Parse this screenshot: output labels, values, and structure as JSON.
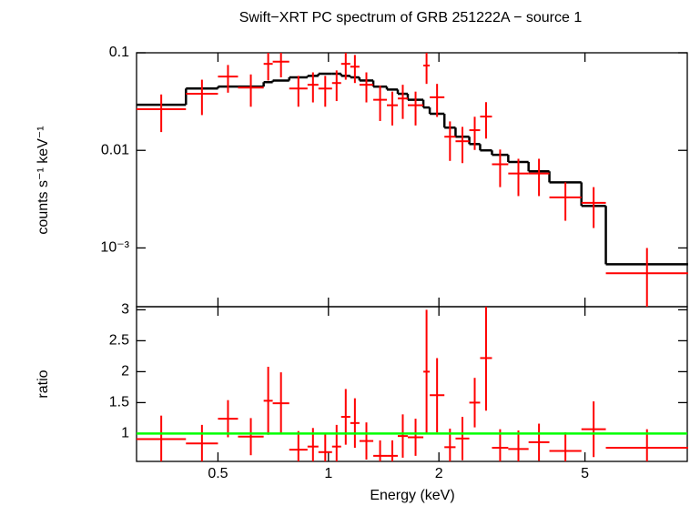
{
  "chart_data": [
    {
      "type": "spectrum",
      "title": "Swift−XRT PC spectrum of GRB 251222A − source 1",
      "ylabel": "counts s⁻¹ keV⁻¹",
      "xlog": true,
      "ylog": true,
      "xlim": [
        0.3,
        9.5
      ],
      "ylim": [
        0.00025,
        0.1
      ],
      "xticks": [
        0.5,
        1,
        2,
        5
      ],
      "yticks": [
        0.1,
        0.01,
        {
          "value": 0.001,
          "label": "10⁻³"
        }
      ],
      "bins": [
        0.3,
        0.409,
        0.5,
        0.567,
        0.666,
        0.705,
        0.782,
        0.877,
        0.939,
        1.023,
        1.083,
        1.147,
        1.215,
        1.325,
        1.443,
        1.545,
        1.645,
        1.814,
        1.888,
        2.07,
        2.22,
        2.42,
        2.59,
        2.79,
        3.09,
        3.51,
        4.0,
        4.89,
        5.7,
        9.55
      ],
      "data": {
        "color": "#ff0000",
        "values": [
          0.0264,
          0.038,
          0.057,
          0.044,
          0.077,
          0.081,
          0.043,
          0.047,
          0.043,
          0.049,
          0.077,
          0.072,
          0.047,
          0.033,
          0.029,
          0.034,
          0.029,
          0.074,
          0.035,
          0.0138,
          0.0124,
          0.0161,
          0.0222,
          0.0072,
          0.0058,
          0.0058,
          0.0033,
          0.0029,
          0.00055
        ],
        "errors": [
          0.011,
          0.015,
          0.018,
          0.016,
          0.025,
          0.025,
          0.015,
          0.016,
          0.015,
          0.017,
          0.024,
          0.023,
          0.016,
          0.013,
          0.011,
          0.013,
          0.011,
          0.026,
          0.013,
          0.006,
          0.005,
          0.006,
          0.009,
          0.003,
          0.0024,
          0.0024,
          0.0014,
          0.0013,
          0.00045
        ]
      },
      "model": {
        "color": "#000000",
        "values": [
          0.0293,
          0.043,
          0.045,
          0.045,
          0.05,
          0.052,
          0.056,
          0.058,
          0.061,
          0.061,
          0.058,
          0.056,
          0.052,
          0.045,
          0.042,
          0.038,
          0.033,
          0.0275,
          0.0237,
          0.0171,
          0.0138,
          0.0116,
          0.01,
          0.009,
          0.0076,
          0.0061,
          0.0047,
          0.0027,
          0.00068
        ]
      }
    },
    {
      "type": "ratio",
      "ylabel": "ratio",
      "xlabel": "Energy (keV)",
      "xlog": true,
      "ylog": false,
      "xlim": [
        0.3,
        9.5
      ],
      "ylim": [
        0.55,
        3.05
      ],
      "xticks": [
        0.5,
        1,
        2,
        5
      ],
      "yticks": [
        1,
        1.5,
        2,
        2.5,
        3
      ],
      "bins": [
        0.3,
        0.409,
        0.5,
        0.567,
        0.666,
        0.705,
        0.782,
        0.877,
        0.939,
        1.023,
        1.083,
        1.147,
        1.215,
        1.325,
        1.443,
        1.545,
        1.645,
        1.814,
        1.888,
        2.07,
        2.22,
        2.42,
        2.59,
        2.79,
        3.09,
        3.51,
        4.0,
        4.89,
        5.7,
        9.55
      ],
      "data": {
        "color": "#ff0000",
        "values": [
          0.91,
          0.84,
          1.24,
          0.95,
          1.53,
          1.49,
          0.74,
          0.79,
          0.7,
          0.79,
          1.27,
          1.17,
          0.88,
          0.64,
          0.64,
          0.96,
          0.94,
          2.0,
          1.62,
          0.78,
          0.92,
          1.5,
          2.22,
          0.77,
          0.75,
          0.86,
          0.72,
          1.07,
          0.77
        ],
        "errors": [
          0.38,
          0.3,
          0.3,
          0.3,
          0.55,
          0.5,
          0.3,
          0.3,
          0.3,
          0.35,
          0.45,
          0.4,
          0.3,
          0.25,
          0.25,
          0.35,
          0.3,
          1.0,
          0.6,
          0.3,
          0.35,
          0.4,
          0.85,
          0.3,
          0.3,
          0.3,
          0.3,
          0.45,
          0.3
        ]
      },
      "reference": {
        "value": 1,
        "color": "#00ff00"
      }
    }
  ]
}
